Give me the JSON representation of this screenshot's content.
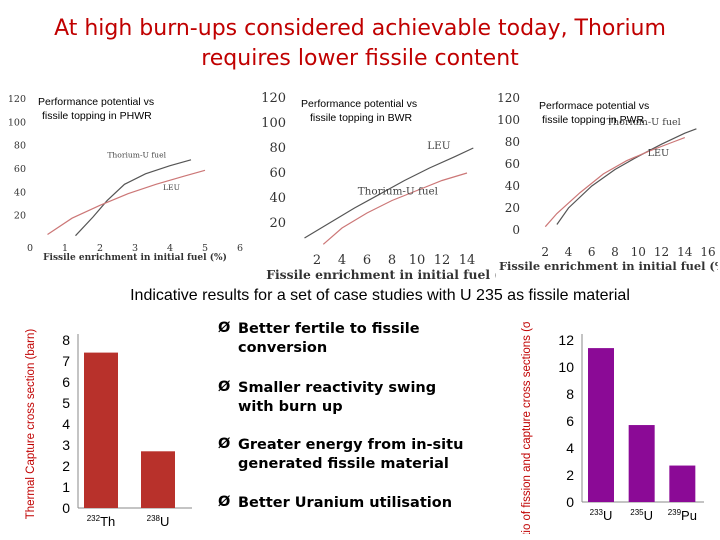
{
  "slide": {
    "title_line1": "At high burn-ups considered achievable today, Thorium",
    "title_line2": "requires lower fissile content",
    "caption": "Indicative results for a set of case studies with U 235 as fissile material",
    "bullet_marker": "Ø",
    "bullets": [
      {
        "line1": "Better fertile to fissile",
        "line2": "conversion"
      },
      {
        "line1": "Smaller reactivity swing",
        "line2": "with burn up"
      },
      {
        "line1": "Greater energy from in-situ",
        "line2": "generated fissile material"
      },
      {
        "line1": "Better Uranium utilisation",
        "line2": ""
      }
    ]
  },
  "colors": {
    "title": "#c00000",
    "bar_red": "#b8312b",
    "bar_purple": "#8b0a96",
    "axis_label_red": "#c00000",
    "curve_a": "#555555",
    "curve_b": "#cc7777"
  },
  "chart_data": [
    {
      "type": "line",
      "panel": "PHWR",
      "title": "Performance potential vs fissile topping in PHWR",
      "xlabel": "Fissile enrichment in initial fuel (%)",
      "xlim": [
        0,
        6
      ],
      "ylim": [
        0,
        120
      ],
      "xticks": [
        0,
        1,
        2,
        3,
        4,
        5,
        6
      ],
      "yticks": [
        20,
        40,
        60,
        80,
        100,
        120
      ],
      "series": [
        {
          "name": "Thorium-U fuel",
          "x": [
            1.3,
            1.8,
            2.2,
            2.7,
            3.3,
            4.0,
            4.6
          ],
          "y": [
            2,
            18,
            32,
            46,
            55,
            62,
            67
          ]
        },
        {
          "name": "LEU",
          "x": [
            0.5,
            1.2,
            2.0,
            2.8,
            3.6,
            4.4,
            5.0
          ],
          "y": [
            3,
            17,
            28,
            38,
            46,
            53,
            58
          ]
        }
      ]
    },
    {
      "type": "line",
      "panel": "BWR",
      "title": "Performance potential vs fissile topping in BWR",
      "xlabel": "Fissile enrichment in initial fuel (%)",
      "xlim": [
        0,
        16
      ],
      "ylim": [
        0,
        120
      ],
      "xticks": [
        2,
        4,
        6,
        8,
        10,
        12,
        14
      ],
      "yticks": [
        20,
        40,
        60,
        80,
        100,
        120
      ],
      "series": [
        {
          "name": "LEU",
          "x": [
            1.0,
            3.0,
            5.0,
            7.0,
            9.0,
            11.0,
            13.0,
            14.5
          ],
          "y": [
            8,
            20,
            32,
            43,
            54,
            64,
            73,
            80
          ]
        },
        {
          "name": "Thorium-U fuel",
          "x": [
            2.5,
            4.0,
            6.0,
            8.0,
            10.0,
            12.0,
            14.0
          ],
          "y": [
            3,
            16,
            28,
            38,
            46,
            54,
            60
          ]
        }
      ]
    },
    {
      "type": "line",
      "panel": "PWR",
      "title": "Performace potential vs fissile topping in PWR",
      "xlabel": "Fissile enrichment in initial fuel (%)",
      "xlim": [
        0,
        16
      ],
      "ylim": [
        0,
        120
      ],
      "xticks": [
        2,
        4,
        6,
        8,
        10,
        12,
        14,
        16
      ],
      "yticks": [
        0,
        20,
        40,
        60,
        80,
        100,
        120
      ],
      "series": [
        {
          "name": "Thorium-U fuel",
          "x": [
            3.0,
            4.0,
            6.0,
            8.0,
            10.0,
            12.0,
            14.0,
            15.0
          ],
          "y": [
            5,
            20,
            40,
            55,
            67,
            78,
            88,
            92
          ]
        },
        {
          "name": "LEU",
          "x": [
            2.0,
            3.0,
            5.0,
            7.0,
            9.0,
            11.0,
            13.0,
            14.0
          ],
          "y": [
            3,
            15,
            34,
            51,
            63,
            72,
            80,
            84
          ]
        }
      ]
    },
    {
      "type": "bar",
      "panel": "capture",
      "ylabel": "Thermal Capture cross section (barn)",
      "ylim": [
        0,
        8
      ],
      "yticks": [
        0,
        1,
        2,
        3,
        4,
        5,
        6,
        7,
        8
      ],
      "categories": [
        {
          "sup": "232",
          "name": "Th"
        },
        {
          "sup": "238",
          "name": "U"
        }
      ],
      "values": [
        7.4,
        2.7
      ]
    },
    {
      "type": "bar",
      "panel": "ratio",
      "ylabel": "Ratio of fission and capture cross sections (σf / σc)",
      "ylim": [
        0,
        12
      ],
      "yticks": [
        0,
        2,
        4,
        6,
        8,
        10,
        12
      ],
      "categories": [
        {
          "sup": "233",
          "name": "U"
        },
        {
          "sup": "235",
          "name": "U"
        },
        {
          "sup": "239",
          "name": "Pu"
        }
      ],
      "values": [
        11.4,
        5.7,
        2.7
      ]
    }
  ]
}
